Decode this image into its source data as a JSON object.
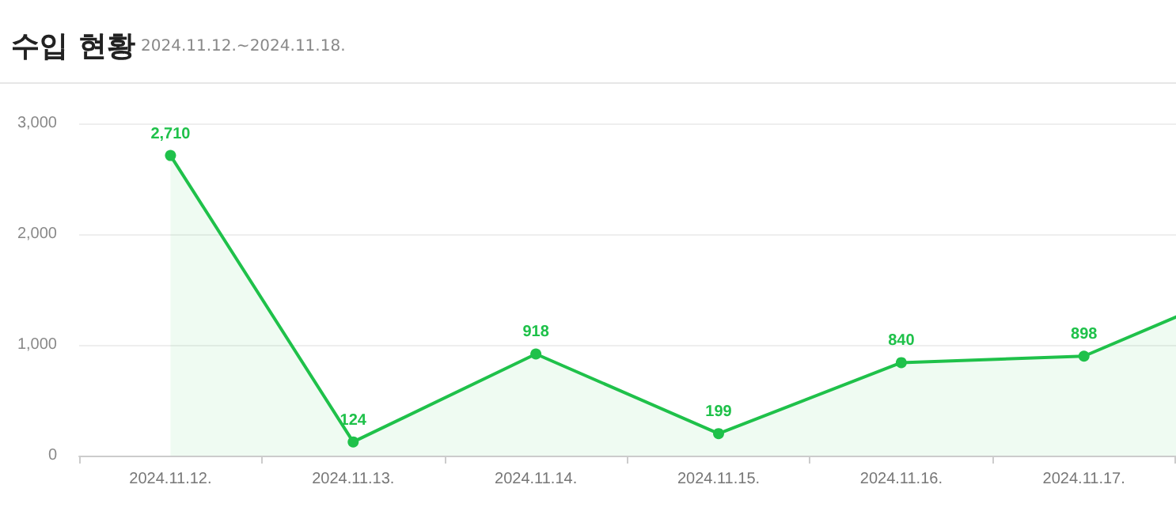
{
  "chart_data": {
    "type": "area",
    "title": "수입 현황",
    "subtitle": "2024.11.12.~2024.11.18.",
    "categories": [
      "2024.11.12.",
      "2024.11.13.",
      "2024.11.14.",
      "2024.11.15.",
      "2024.11.16.",
      "2024.11.17.",
      null
    ],
    "series": [
      {
        "color": "#1fc14a",
        "values": [
          2710,
          124,
          918,
          199,
          840,
          898,
          1600
        ],
        "value_labels": [
          "2,710",
          "124",
          "918",
          "199",
          "840",
          "898",
          null
        ]
      }
    ],
    "ylim": [
      0,
      3000
    ],
    "yticks": [
      {
        "value": 0,
        "label": "0"
      },
      {
        "value": 1000,
        "label": "1,000"
      },
      {
        "value": 2000,
        "label": "2,000"
      },
      {
        "value": 3000,
        "label": "3,000"
      }
    ],
    "grid": "y",
    "marker": "circle"
  }
}
